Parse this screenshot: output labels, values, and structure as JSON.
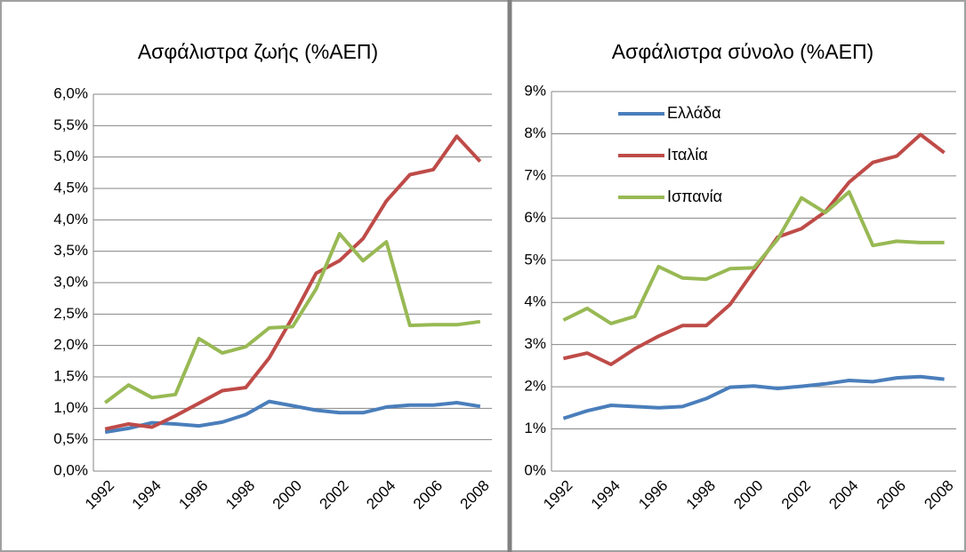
{
  "chart_data": [
    {
      "type": "line",
      "title": "Ασφάλιστρα ζωής (%ΑΕΠ)",
      "categories": [
        "1992",
        null,
        "1994",
        null,
        "1996",
        null,
        "1998",
        null,
        "2000",
        null,
        "2002",
        null,
        "2004",
        null,
        "2006",
        null,
        "2008"
      ],
      "ylim": [
        0,
        6
      ],
      "yticks": [
        {
          "value": 0,
          "label": "0,0%"
        },
        {
          "value": 0.5,
          "label": "0,5%"
        },
        {
          "value": 1,
          "label": "1,0%"
        },
        {
          "value": 1.5,
          "label": "1,5%"
        },
        {
          "value": 2,
          "label": "2,0%"
        },
        {
          "value": 2.5,
          "label": "2,5%"
        },
        {
          "value": 3,
          "label": "3,0%"
        },
        {
          "value": 3.5,
          "label": "3,5%"
        },
        {
          "value": 4,
          "label": "4,0%"
        },
        {
          "value": 4.5,
          "label": "4,5%"
        },
        {
          "value": 5,
          "label": "5,0%"
        },
        {
          "value": 5.5,
          "label": "5,5%"
        },
        {
          "value": 6,
          "label": "6,0%"
        }
      ],
      "grid": true,
      "series": [
        {
          "color": "#4a7ebb",
          "values": [
            0.62,
            0.68,
            0.77,
            0.75,
            0.72,
            0.78,
            0.9,
            1.11,
            1.04,
            0.97,
            0.93,
            0.93,
            1.02,
            1.05,
            1.05,
            1.09,
            1.03
          ]
        },
        {
          "color": "#be4b48",
          "values": [
            0.67,
            0.75,
            0.7,
            0.88,
            1.08,
            1.28,
            1.33,
            1.8,
            2.45,
            3.15,
            3.35,
            3.7,
            4.3,
            4.72,
            4.8,
            5.33,
            4.93
          ]
        },
        {
          "color": "#98b954",
          "values": [
            1.09,
            1.37,
            1.17,
            1.22,
            2.11,
            1.88,
            1.98,
            2.28,
            2.3,
            2.9,
            3.78,
            3.35,
            3.65,
            2.32,
            2.33,
            2.33,
            2.38
          ]
        }
      ]
    },
    {
      "type": "line",
      "title": "Ασφάλιστρα σύνολο (%ΑΕΠ)",
      "categories": [
        "1992",
        null,
        "1994",
        null,
        "1996",
        null,
        "1998",
        null,
        "2000",
        null,
        "2002",
        null,
        "2004",
        null,
        "2006",
        null,
        "2008"
      ],
      "ylim": [
        0,
        9
      ],
      "yticks": [
        {
          "value": 0,
          "label": "0%"
        },
        {
          "value": 1,
          "label": "1%"
        },
        {
          "value": 2,
          "label": "2%"
        },
        {
          "value": 3,
          "label": "3%"
        },
        {
          "value": 4,
          "label": "4%"
        },
        {
          "value": 5,
          "label": "5%"
        },
        {
          "value": 6,
          "label": "6%"
        },
        {
          "value": 7,
          "label": "7%"
        },
        {
          "value": 8,
          "label": "8%"
        },
        {
          "value": 9,
          "label": "9%"
        }
      ],
      "grid": true,
      "legend": "top-left",
      "series": [
        {
          "name": "Ελλάδα",
          "color": "#4a7ebb",
          "values": [
            1.25,
            1.43,
            1.56,
            1.53,
            1.5,
            1.53,
            1.72,
            1.99,
            2.02,
            1.96,
            2.01,
            2.07,
            2.15,
            2.12,
            2.21,
            2.24,
            2.18
          ]
        },
        {
          "name": "Ιταλία",
          "color": "#be4b48",
          "values": [
            2.67,
            2.8,
            2.53,
            2.9,
            3.2,
            3.45,
            3.45,
            3.95,
            4.75,
            5.55,
            5.75,
            6.15,
            6.85,
            7.32,
            7.47,
            7.98,
            7.55
          ]
        },
        {
          "name": "Ισπανία",
          "color": "#98b954",
          "values": [
            3.58,
            3.86,
            3.5,
            3.67,
            4.85,
            4.58,
            4.55,
            4.8,
            4.82,
            5.5,
            6.48,
            6.13,
            6.62,
            5.35,
            5.45,
            5.42,
            5.42
          ]
        }
      ]
    }
  ]
}
